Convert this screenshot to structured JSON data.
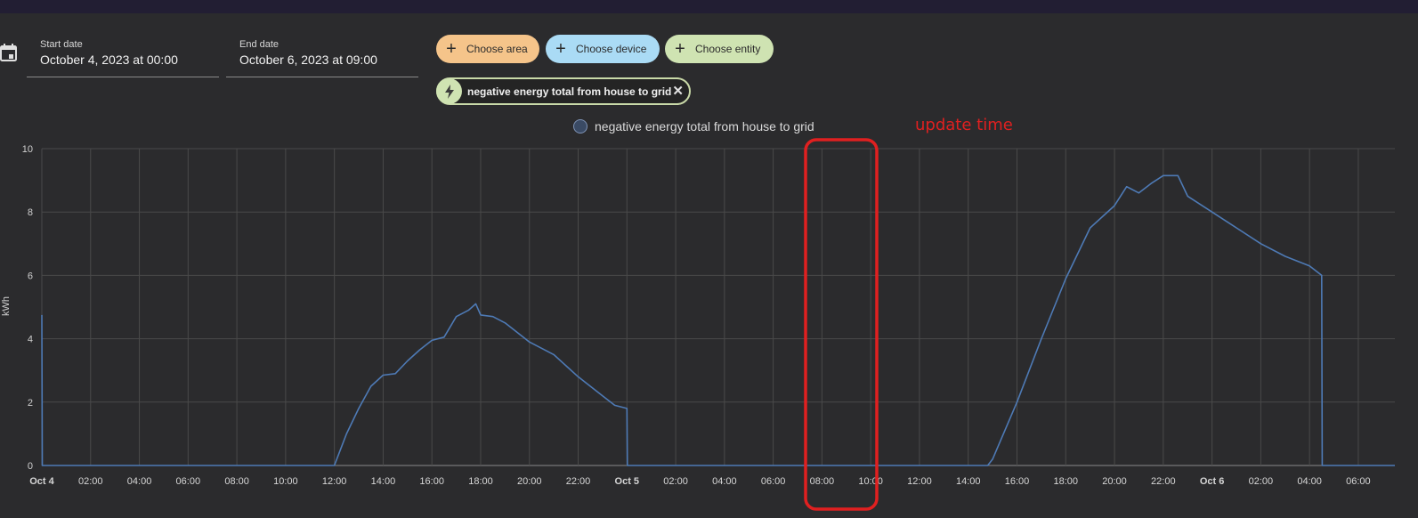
{
  "date_range": {
    "start": {
      "label": "Start date",
      "value": "October 4, 2023 at 00:00"
    },
    "end": {
      "label": "End date",
      "value": "October 6, 2023 at 09:00"
    }
  },
  "chips": [
    {
      "label": "Choose area",
      "color": "#f5c48a"
    },
    {
      "label": "Choose device",
      "color": "#aadbf5"
    },
    {
      "label": "Choose entity",
      "color": "#cfe3b2"
    }
  ],
  "selected_entity": {
    "label": "negative energy total from house to grid"
  },
  "annotation": {
    "text": "update time"
  },
  "chart_data": {
    "type": "line",
    "title": "",
    "xlabel": "",
    "ylabel": "kWh",
    "ylim": [
      0,
      10
    ],
    "yticks": [
      "0",
      "2",
      "4",
      "6",
      "8",
      "10"
    ],
    "xticks": [
      "Oct 4",
      "02:00",
      "04:00",
      "06:00",
      "08:00",
      "10:00",
      "12:00",
      "14:00",
      "16:00",
      "18:00",
      "20:00",
      "22:00",
      "Oct 5",
      "02:00",
      "04:00",
      "06:00",
      "08:00",
      "10:00",
      "12:00",
      "14:00",
      "16:00",
      "18:00",
      "20:00",
      "22:00",
      "Oct 6",
      "02:00",
      "04:00",
      "06:00"
    ],
    "xticks_bold": [
      "Oct 4",
      "Oct 5",
      "Oct 6"
    ],
    "x_hours_range": [
      0,
      55.5
    ],
    "grid": true,
    "legend_position": "top-center",
    "series": [
      {
        "name": "negative energy total from house to grid",
        "color": "#4e7ab5",
        "points": [
          [
            0,
            4.75
          ],
          [
            0.02,
            0
          ],
          [
            12,
            0
          ],
          [
            12.5,
            1.0
          ],
          [
            13,
            1.8
          ],
          [
            13.5,
            2.5
          ],
          [
            14,
            2.85
          ],
          [
            14.5,
            2.9
          ],
          [
            15,
            3.3
          ],
          [
            15.5,
            3.65
          ],
          [
            16,
            3.95
          ],
          [
            16.5,
            4.05
          ],
          [
            17,
            4.7
          ],
          [
            17.5,
            4.9
          ],
          [
            17.8,
            5.1
          ],
          [
            18,
            4.75
          ],
          [
            18.5,
            4.7
          ],
          [
            19,
            4.5
          ],
          [
            20,
            3.9
          ],
          [
            21,
            3.5
          ],
          [
            22,
            2.8
          ],
          [
            23,
            2.2
          ],
          [
            23.5,
            1.9
          ],
          [
            24,
            1.8
          ],
          [
            24.02,
            0
          ],
          [
            38.8,
            0
          ],
          [
            39,
            0.2
          ],
          [
            40,
            2.0
          ],
          [
            41,
            4.0
          ],
          [
            42,
            5.9
          ],
          [
            43,
            7.5
          ],
          [
            44,
            8.2
          ],
          [
            44.5,
            8.8
          ],
          [
            45,
            8.6
          ],
          [
            45.5,
            8.9
          ],
          [
            46,
            9.15
          ],
          [
            46.6,
            9.15
          ],
          [
            47,
            8.5
          ],
          [
            48,
            8.0
          ],
          [
            49,
            7.5
          ],
          [
            50,
            7.0
          ],
          [
            51,
            6.6
          ],
          [
            52,
            6.3
          ],
          [
            52.5,
            6.0
          ],
          [
            52.52,
            0
          ],
          [
            55.5,
            0
          ]
        ]
      }
    ]
  }
}
